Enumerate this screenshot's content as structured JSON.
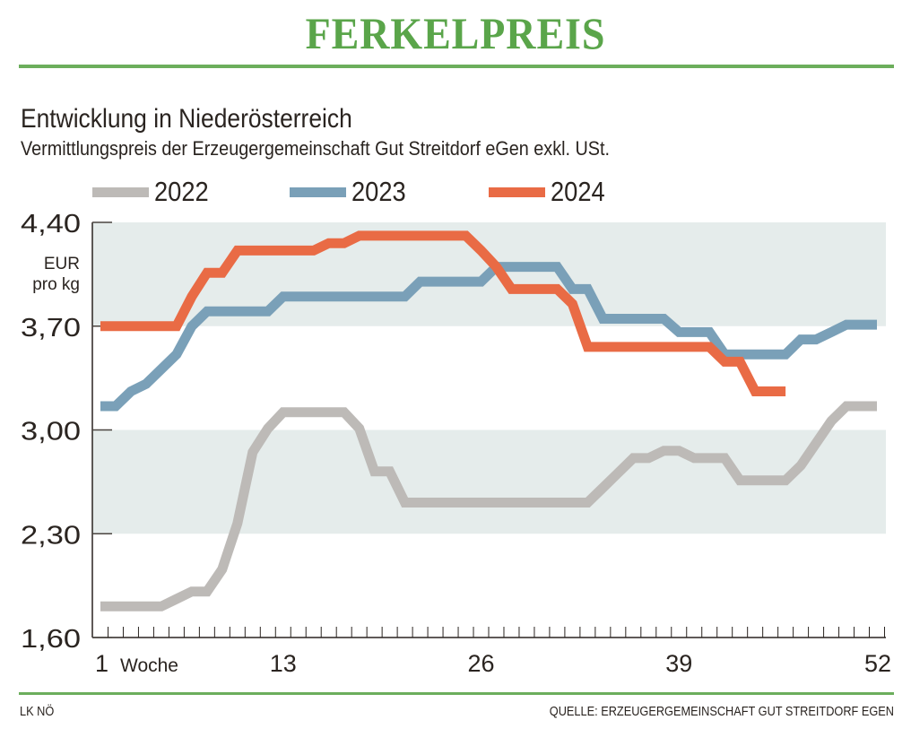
{
  "header": {
    "title": "FERKELPREIS",
    "subtitle": "Entwicklung in Niederösterreich",
    "description": "Vermittlungspreis der Erzeugergemeinschaft Gut Streitdorf eGen exkl. USt."
  },
  "footer": {
    "left": "LK NÖ",
    "right": "QUELLE: ERZEUGERGEMEINSCHAFT GUT STREITDORF EGEN"
  },
  "colors": {
    "brand_green": "#5aa54a",
    "band": "#e5eceb",
    "series_2022": "#bdbab7",
    "series_2023": "#7aa0b8",
    "series_2024": "#e96b45",
    "axis": "#2a2420"
  },
  "chart_data": {
    "type": "line",
    "title": "FERKELPREIS",
    "subtitle": "Entwicklung in Niederösterreich",
    "xlabel": "Woche",
    "ylabel": "EUR pro kg",
    "ylabel_lines": [
      "EUR",
      "pro kg"
    ],
    "xlim": [
      1,
      52
    ],
    "ylim": [
      1.6,
      4.4
    ],
    "x_ticks": [
      1,
      13,
      26,
      39,
      52
    ],
    "x_tick_labels": [
      "1",
      "13",
      "26",
      "39",
      "52"
    ],
    "y_ticks": [
      1.6,
      2.3,
      3.0,
      3.7,
      4.4
    ],
    "y_tick_labels": [
      "1,60",
      "2,30",
      "3,00",
      "3,70",
      "4,40"
    ],
    "shaded_bands": [
      [
        2.3,
        3.0
      ],
      [
        3.7,
        4.4
      ]
    ],
    "legend": {
      "placement": "top",
      "entries": [
        "2022",
        "2023",
        "2024"
      ]
    },
    "grid": false,
    "series": [
      {
        "name": "2022",
        "x": [
          1,
          2,
          3,
          4,
          5,
          6,
          7,
          8,
          9,
          10,
          11,
          12,
          13,
          14,
          15,
          16,
          17,
          18,
          19,
          20,
          21,
          22,
          23,
          24,
          25,
          26,
          27,
          28,
          29,
          30,
          31,
          32,
          33,
          34,
          35,
          36,
          37,
          38,
          39,
          40,
          41,
          42,
          43,
          44,
          45,
          46,
          47,
          48,
          49,
          50,
          51,
          52
        ],
        "values": [
          1.81,
          1.81,
          1.81,
          1.81,
          1.81,
          1.86,
          1.91,
          1.91,
          2.06,
          2.37,
          2.85,
          3.01,
          3.12,
          3.12,
          3.12,
          3.12,
          3.12,
          3.01,
          2.72,
          2.72,
          2.51,
          2.51,
          2.51,
          2.51,
          2.51,
          2.51,
          2.51,
          2.51,
          2.51,
          2.51,
          2.51,
          2.51,
          2.51,
          2.61,
          2.71,
          2.81,
          2.81,
          2.86,
          2.86,
          2.81,
          2.81,
          2.81,
          2.66,
          2.66,
          2.66,
          2.66,
          2.76,
          2.91,
          3.06,
          3.16,
          3.16,
          3.16
        ]
      },
      {
        "name": "2023",
        "x": [
          1,
          2,
          3,
          4,
          5,
          6,
          7,
          8,
          9,
          10,
          11,
          12,
          13,
          14,
          15,
          16,
          17,
          18,
          19,
          20,
          21,
          22,
          23,
          24,
          25,
          26,
          27,
          28,
          29,
          30,
          31,
          32,
          33,
          34,
          35,
          36,
          37,
          38,
          39,
          40,
          41,
          42,
          43,
          44,
          45,
          46,
          47,
          48,
          49,
          50,
          51,
          52
        ],
        "values": [
          3.16,
          3.16,
          3.26,
          3.31,
          3.41,
          3.51,
          3.7,
          3.8,
          3.8,
          3.8,
          3.8,
          3.8,
          3.9,
          3.9,
          3.9,
          3.9,
          3.9,
          3.9,
          3.9,
          3.9,
          3.9,
          4.0,
          4.0,
          4.0,
          4.0,
          4.0,
          4.1,
          4.1,
          4.1,
          4.1,
          4.1,
          3.95,
          3.95,
          3.75,
          3.75,
          3.75,
          3.75,
          3.75,
          3.66,
          3.66,
          3.66,
          3.51,
          3.51,
          3.51,
          3.51,
          3.51,
          3.61,
          3.61,
          3.66,
          3.71,
          3.71,
          3.71
        ]
      },
      {
        "name": "2024",
        "x": [
          1,
          2,
          3,
          4,
          5,
          6,
          7,
          8,
          9,
          10,
          11,
          12,
          13,
          14,
          15,
          16,
          17,
          18,
          19,
          20,
          21,
          22,
          23,
          24,
          25,
          26,
          27,
          28,
          29,
          30,
          31,
          32,
          33,
          34,
          35,
          36,
          37,
          38,
          39,
          40,
          41,
          42,
          43,
          44,
          45,
          46
        ],
        "values": [
          3.7,
          3.7,
          3.7,
          3.7,
          3.7,
          3.7,
          3.9,
          4.06,
          4.06,
          4.21,
          4.21,
          4.21,
          4.21,
          4.21,
          4.21,
          4.26,
          4.26,
          4.31,
          4.31,
          4.31,
          4.31,
          4.31,
          4.31,
          4.31,
          4.31,
          4.21,
          4.1,
          3.95,
          3.95,
          3.95,
          3.95,
          3.85,
          3.56,
          3.56,
          3.56,
          3.56,
          3.56,
          3.56,
          3.56,
          3.56,
          3.56,
          3.46,
          3.46,
          3.26,
          3.26,
          3.26
        ]
      }
    ]
  }
}
